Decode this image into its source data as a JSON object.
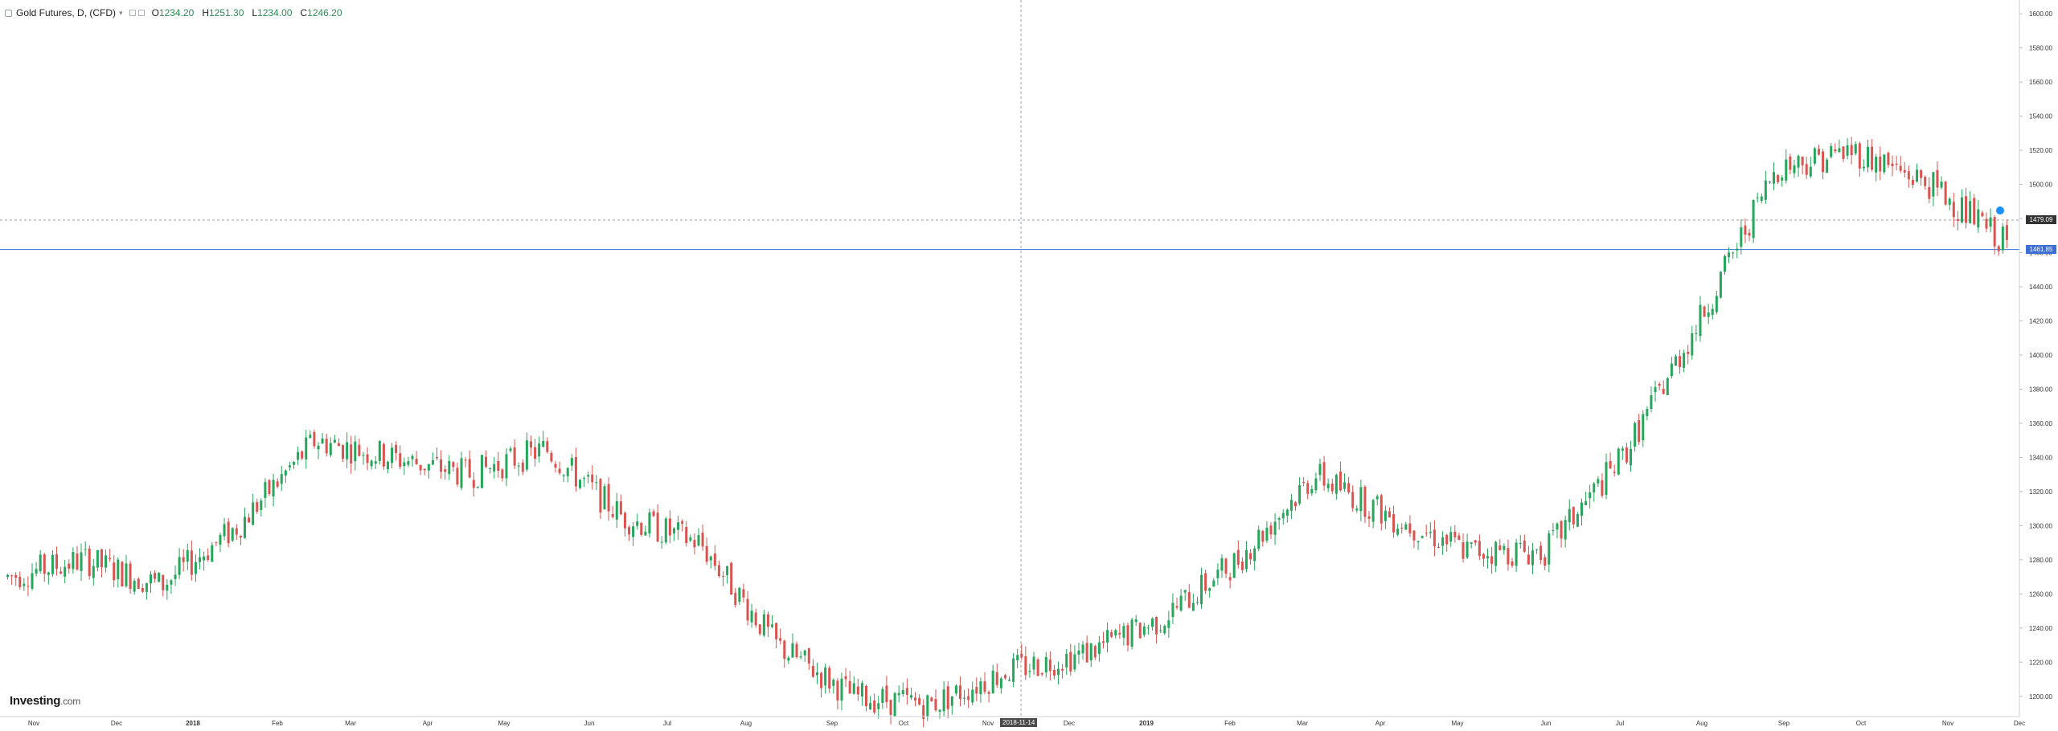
{
  "legend": {
    "title": "Gold Futures, D, (CFD)",
    "caret": "▾",
    "open_label": "O",
    "open": "1234.20",
    "high_label": "H",
    "high": "1251.30",
    "low_label": "L",
    "low": "1234.00",
    "close_label": "C",
    "close": "1246.20"
  },
  "logo": {
    "text": "Investing",
    "suffix": ".com"
  },
  "crosshair": {
    "date_label": "2018-11-14"
  },
  "price_tags": {
    "dashed": "1479.09",
    "last": "1461.85"
  },
  "colors": {
    "up": "#26a65b",
    "down": "#d9534f",
    "last_line": "#3b6fd6",
    "accent_dot": "#1e90ff"
  },
  "chart_data": {
    "type": "candlestick",
    "title": "Gold Futures, D, (CFD)",
    "ylim": [
      1190,
      1610
    ],
    "y_ticks": [
      "1200.00",
      "1220.00",
      "1240.00",
      "1260.00",
      "1280.00",
      "1300.00",
      "1320.00",
      "1340.00",
      "1360.00",
      "1380.00",
      "1400.00",
      "1420.00",
      "1440.00",
      "1460.00",
      "1480.00",
      "1500.00",
      "1520.00",
      "1540.00",
      "1560.00",
      "1580.00",
      "1600.00"
    ],
    "x_ticks": [
      "Nov",
      "Dec",
      "2018",
      "Feb",
      "Mar",
      "Apr",
      "May",
      "Jun",
      "Jul",
      "Aug",
      "Sep",
      "Oct",
      "Nov",
      "Dec",
      "2019",
      "Feb",
      "Mar",
      "Apr",
      "May",
      "Jun",
      "Jul",
      "Aug",
      "Sep",
      "Oct",
      "Nov",
      "Dec"
    ],
    "grid": false,
    "reference_lines": [
      1479.09,
      1461.85
    ],
    "monthly_path": [
      {
        "m": "2017-10",
        "p": 1270
      },
      {
        "m": "2017-11",
        "p": 1280
      },
      {
        "m": "2017-12",
        "p": 1265
      },
      {
        "m": "2018-01",
        "p": 1300
      },
      {
        "m": "2018-01b",
        "p": 1350
      },
      {
        "m": "2018-02",
        "p": 1340
      },
      {
        "m": "2018-03",
        "p": 1330
      },
      {
        "m": "2018-04",
        "p": 1345
      },
      {
        "m": "2018-05",
        "p": 1305
      },
      {
        "m": "2018-06",
        "p": 1290
      },
      {
        "m": "2018-07",
        "p": 1230
      },
      {
        "m": "2018-08",
        "p": 1200
      },
      {
        "m": "2018-09",
        "p": 1195
      },
      {
        "m": "2018-10",
        "p": 1215
      },
      {
        "m": "2018-11",
        "p": 1225
      },
      {
        "m": "2018-12",
        "p": 1245
      },
      {
        "m": "2019-01",
        "p": 1280
      },
      {
        "m": "2019-02",
        "p": 1330
      },
      {
        "m": "2019-03",
        "p": 1305
      },
      {
        "m": "2019-04",
        "p": 1285
      },
      {
        "m": "2019-05",
        "p": 1285
      },
      {
        "m": "2019-06",
        "p": 1340
      },
      {
        "m": "2019-07",
        "p": 1420
      },
      {
        "m": "2019-08",
        "p": 1510
      },
      {
        "m": "2019-09",
        "p": 1520
      },
      {
        "m": "2019-10",
        "p": 1500
      },
      {
        "m": "2019-11",
        "p": 1465
      }
    ]
  }
}
